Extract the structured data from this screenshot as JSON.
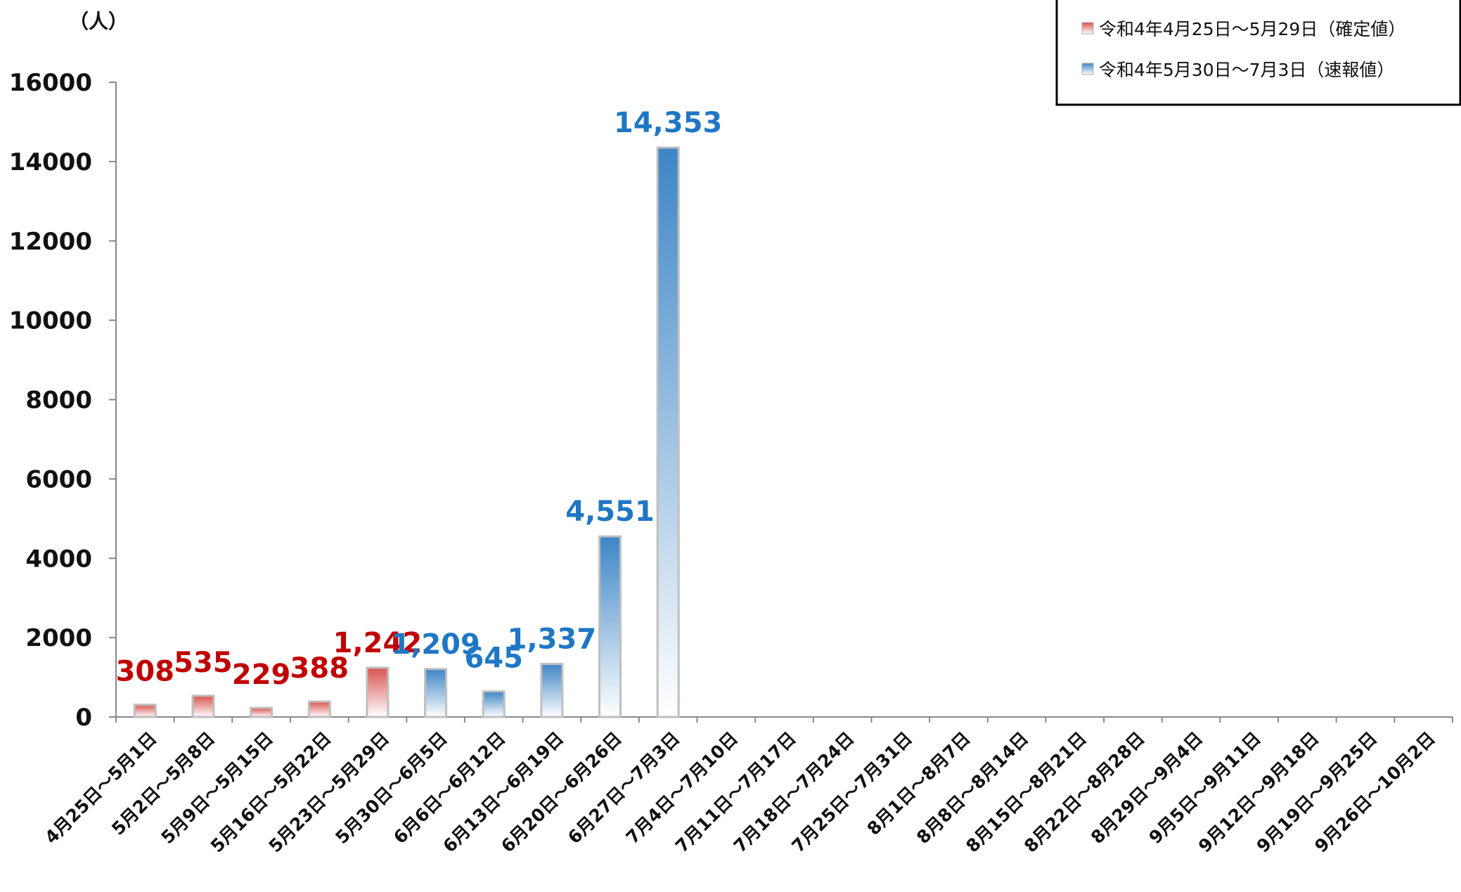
{
  "chart_data": {
    "type": "bar",
    "unit_label": "（人）",
    "ylim": [
      0,
      16000
    ],
    "yticks": [
      "0",
      "2000",
      "4000",
      "6000",
      "8000",
      "10000",
      "12000",
      "14000",
      "16000"
    ],
    "categories": [
      "4月25日～5月1日",
      "5月2日～5月8日",
      "5月9日～5月15日",
      "5月16日～5月22日",
      "5月23日～5月29日",
      "5月30日～6月5日",
      "6月6日～6月12日",
      "6月13日～6月19日",
      "6月20日～6月26日",
      "6月27日～7月3日",
      "7月4日～7月10日",
      "7月11日～7月17日",
      "7月18日～7月24日",
      "7月25日～7月31日",
      "8月1日～8月7日",
      "8月8日～8月14日",
      "8月15日～8月21日",
      "8月22日～8月28日",
      "8月29日～9月4日",
      "9月5日～9月11日",
      "9月12日～9月18日",
      "9月19日～9月25日",
      "9月26日～10月2日"
    ],
    "series": [
      {
        "name": "令和4年4月25日～5月29日（確定値）",
        "color": "#d9534f",
        "label_color": "#c00000",
        "values": [
          308,
          535,
          229,
          388,
          1242,
          null,
          null,
          null,
          null,
          null,
          null,
          null,
          null,
          null,
          null,
          null,
          null,
          null,
          null,
          null,
          null,
          null,
          null
        ],
        "labels": [
          "308",
          "535",
          "229",
          "388",
          "1,242"
        ]
      },
      {
        "name": "令和4年5月30日～7月3日（速報値）",
        "color": "#3d85c6",
        "label_color": "#1f77c4",
        "values": [
          null,
          null,
          null,
          null,
          null,
          1209,
          645,
          1337,
          4551,
          14353,
          null,
          null,
          null,
          null,
          null,
          null,
          null,
          null,
          null,
          null,
          null,
          null,
          null
        ],
        "labels": [
          "1,209",
          "645",
          "1,337",
          "4,551",
          "14,353"
        ]
      }
    ],
    "legend_position": "top-right",
    "grid": false
  }
}
